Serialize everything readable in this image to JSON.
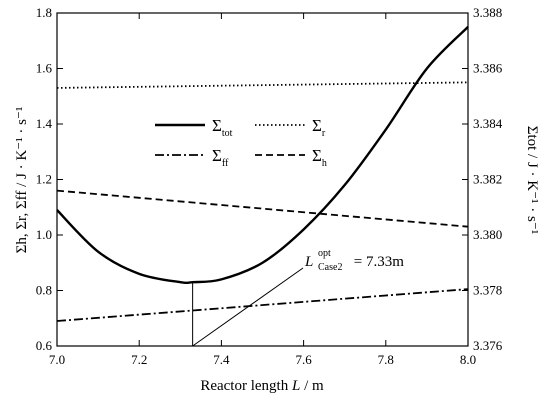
{
  "chart_data": {
    "type": "line",
    "xlabel": {
      "main": "Reactor length ",
      "var": "L",
      "unit": " / m"
    },
    "ylabel_left": {
      "text": "Σh, Σr, Σff / J · K⁻¹ · s⁻¹"
    },
    "ylabel_right": {
      "text": "Σtot / J · K⁻¹ · s⁻¹"
    },
    "xlim": [
      7.0,
      8.0
    ],
    "ylim_left": [
      0.6,
      1.8
    ],
    "ylim_right": [
      3.376,
      3.388
    ],
    "x_ticks": [
      "7.0",
      "7.2",
      "7.4",
      "7.6",
      "7.8",
      "8.0"
    ],
    "y_left_ticks": [
      "0.6",
      "0.8",
      "1.0",
      "1.2",
      "1.4",
      "1.6",
      "1.8"
    ],
    "y_right_ticks": [
      "3.376",
      "3.378",
      "3.380",
      "3.382",
      "3.384",
      "3.386",
      "3.388"
    ],
    "grid": false,
    "legend_position": "upper-middle",
    "series": [
      {
        "key": "tot",
        "name": "Σtot",
        "sym": "Σ",
        "sub": "tot",
        "axis": "right",
        "style": "solid",
        "x": [
          7.0,
          7.1,
          7.2,
          7.3,
          7.33,
          7.4,
          7.5,
          7.6,
          7.7,
          7.8,
          7.9,
          8.0
        ],
        "y": [
          3.3809,
          3.3794,
          3.3786,
          3.3783,
          3.3783,
          3.3784,
          3.379,
          3.3802,
          3.3818,
          3.3838,
          3.386,
          3.3875
        ]
      },
      {
        "key": "r",
        "name": "Σr",
        "sym": "Σ",
        "sub": "r",
        "axis": "left",
        "style": "dotted",
        "x": [
          7.0,
          8.0
        ],
        "y": [
          1.53,
          1.55
        ]
      },
      {
        "key": "ff",
        "name": "Σff",
        "sym": "Σ",
        "sub": "ff",
        "axis": "left",
        "style": "dashdot",
        "x": [
          7.0,
          8.0
        ],
        "y": [
          0.69,
          0.805
        ]
      },
      {
        "key": "h",
        "name": "Σh",
        "sym": "Σ",
        "sub": "h",
        "axis": "left",
        "style": "dashed",
        "x": [
          7.0,
          8.0
        ],
        "y": [
          1.16,
          1.03
        ]
      }
    ],
    "annotation": {
      "var": "L",
      "sup": "opt",
      "sub": "Case2",
      "text": " = 7.33m",
      "x_opt": 7.33
    }
  }
}
